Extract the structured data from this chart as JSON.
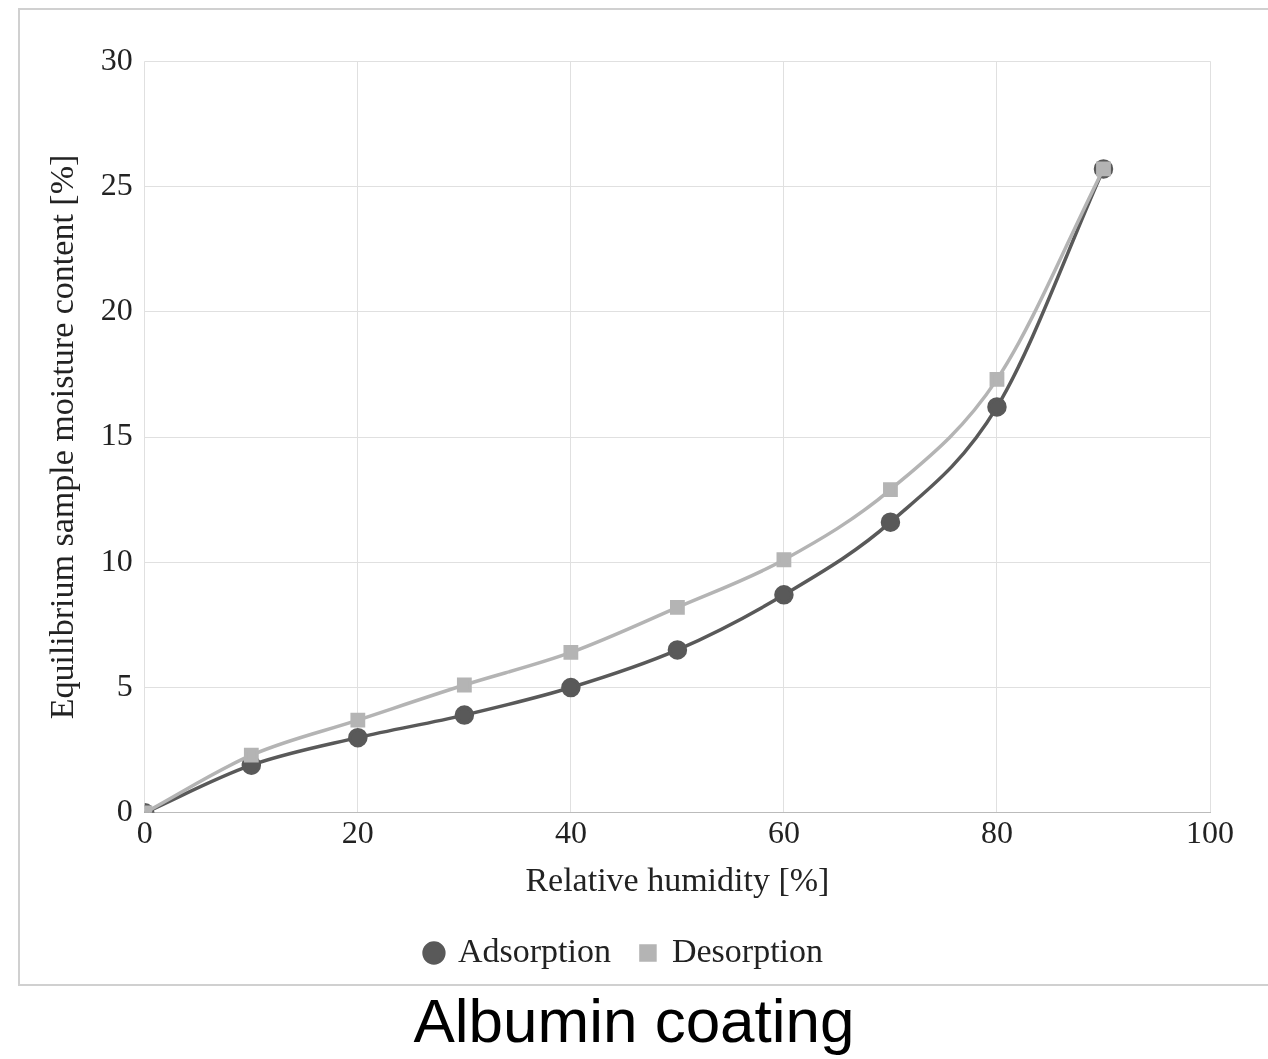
{
  "chart_data": {
    "type": "line",
    "title": "Albumin coating",
    "xlabel": "Relative humidity [%]",
    "ylabel": "Equilibrium sample moisture content [%]",
    "x": [
      0,
      10,
      20,
      30,
      40,
      50,
      60,
      70,
      80,
      90
    ],
    "series": [
      {
        "name": "Adsorption",
        "color": "#595959",
        "marker": "circle",
        "values": [
          0,
          1.9,
          3.0,
          3.9,
          5.0,
          6.5,
          8.7,
          11.6,
          16.2,
          25.7
        ]
      },
      {
        "name": "Desorption",
        "color": "#b4b4b4",
        "marker": "square",
        "values": [
          0,
          2.3,
          3.7,
          5.1,
          6.4,
          8.2,
          10.1,
          12.9,
          17.3,
          25.7
        ]
      }
    ],
    "xlim": [
      0,
      100
    ],
    "xticks": [
      0,
      20,
      40,
      60,
      80,
      100
    ],
    "ylim": [
      0,
      30
    ],
    "yticks": [
      0,
      5,
      10,
      15,
      20,
      25,
      30
    ],
    "grid": true,
    "legend": "bottom",
    "line_style": "solid"
  }
}
